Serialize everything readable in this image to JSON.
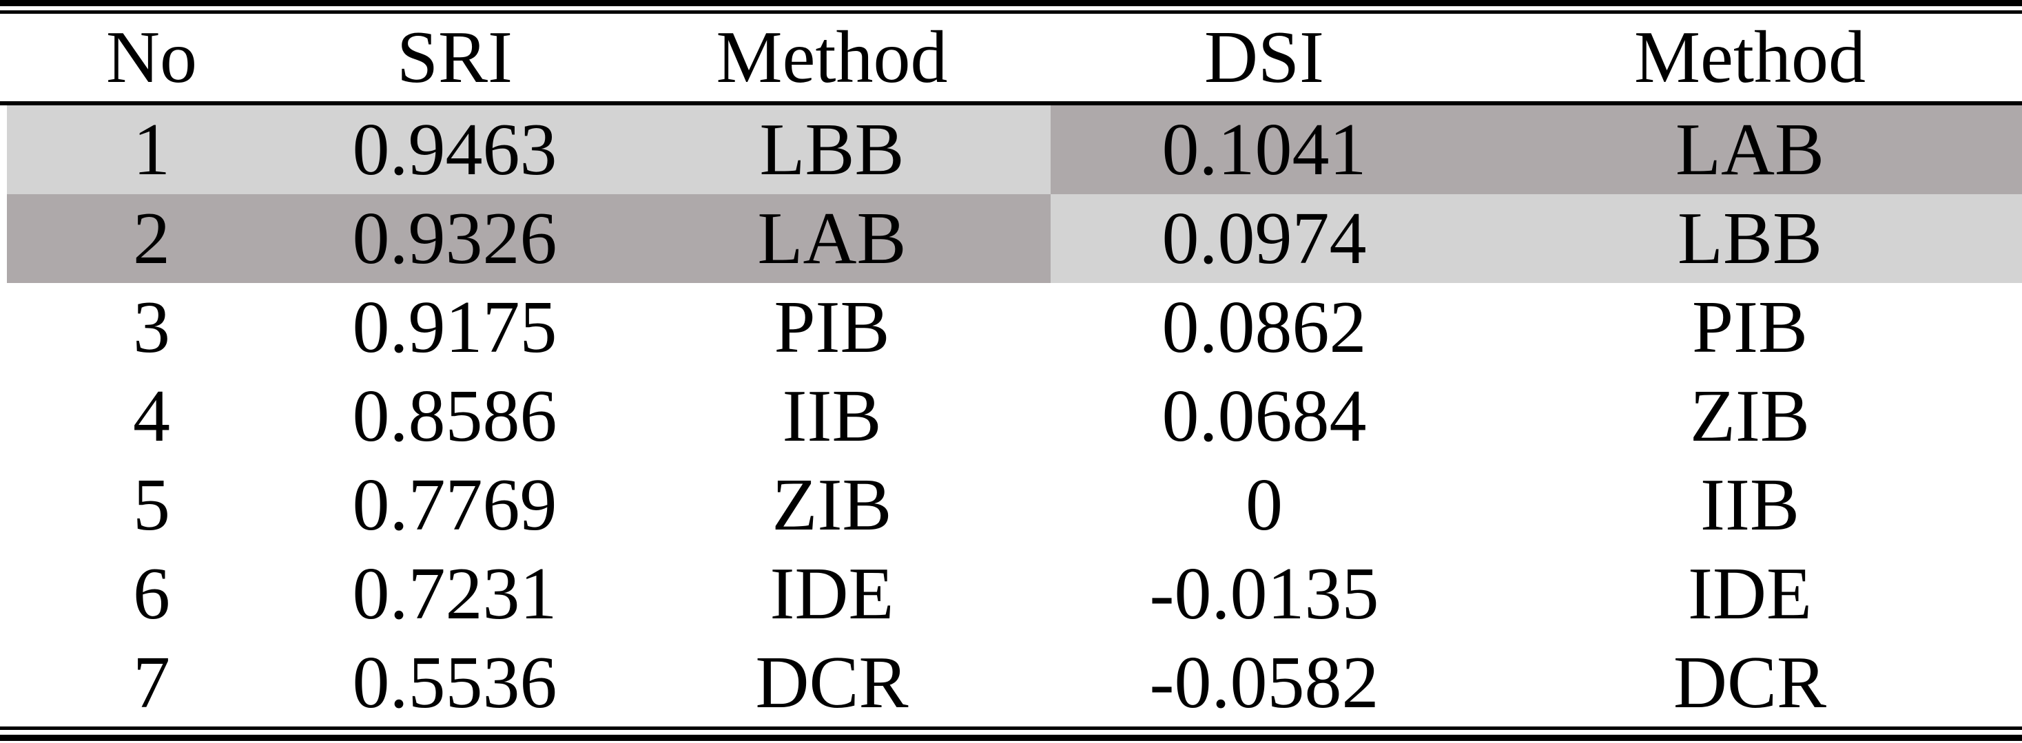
{
  "table": {
    "headers": [
      "No",
      "SRI",
      "Method",
      "DSI",
      "Method"
    ],
    "rows": [
      [
        "1",
        "0.9463",
        "LBB",
        "0.1041",
        "LAB"
      ],
      [
        "2",
        "0.9326",
        "LAB",
        "0.0974",
        "LBB"
      ],
      [
        "3",
        "0.9175",
        "PIB",
        "0.0862",
        "PIB"
      ],
      [
        "4",
        "0.8586",
        "IIB",
        "0.0684",
        "ZIB"
      ],
      [
        "5",
        "0.7769",
        "ZIB",
        "0",
        "IIB"
      ],
      [
        "6",
        "0.7231",
        "IDE",
        "-0.0135",
        "IDE"
      ],
      [
        "7",
        "0.5536",
        "DCR",
        "-0.0582",
        "DCR"
      ]
    ]
  },
  "colors": {
    "highlight_light": "#d3d3d3",
    "highlight_dark": "#aea9aa",
    "text": "#000000",
    "rule": "#000000"
  }
}
